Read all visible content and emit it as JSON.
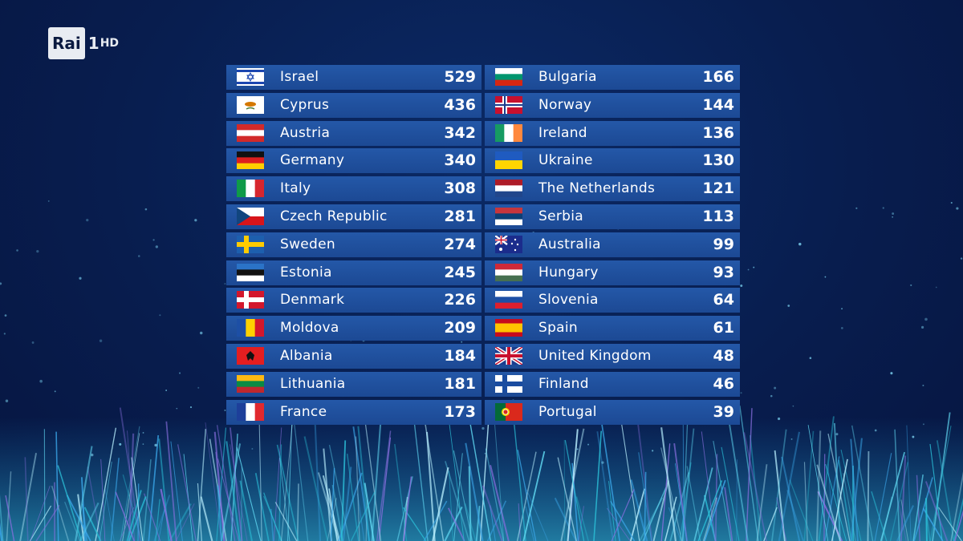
{
  "logo": {
    "brand": "Rai",
    "channel": "1",
    "quality": "HD"
  },
  "scoreboard": {
    "columns": [
      [
        {
          "country": "Israel",
          "points": "529"
        },
        {
          "country": "Cyprus",
          "points": "436"
        },
        {
          "country": "Austria",
          "points": "342"
        },
        {
          "country": "Germany",
          "points": "340"
        },
        {
          "country": "Italy",
          "points": "308"
        },
        {
          "country": "Czech Republic",
          "points": "281"
        },
        {
          "country": "Sweden",
          "points": "274"
        },
        {
          "country": "Estonia",
          "points": "245"
        },
        {
          "country": "Denmark",
          "points": "226"
        },
        {
          "country": "Moldova",
          "points": "209"
        },
        {
          "country": "Albania",
          "points": "184"
        },
        {
          "country": "Lithuania",
          "points": "181"
        },
        {
          "country": "France",
          "points": "173"
        }
      ],
      [
        {
          "country": "Bulgaria",
          "points": "166"
        },
        {
          "country": "Norway",
          "points": "144"
        },
        {
          "country": "Ireland",
          "points": "136"
        },
        {
          "country": "Ukraine",
          "points": "130"
        },
        {
          "country": "The Netherlands",
          "points": "121"
        },
        {
          "country": "Serbia",
          "points": "113"
        },
        {
          "country": "Australia",
          "points": "99"
        },
        {
          "country": "Hungary",
          "points": "93"
        },
        {
          "country": "Slovenia",
          "points": "64"
        },
        {
          "country": "Spain",
          "points": "61"
        },
        {
          "country": "United Kingdom",
          "points": "48"
        },
        {
          "country": "Finland",
          "points": "46"
        },
        {
          "country": "Portugal",
          "points": "39"
        }
      ]
    ]
  }
}
